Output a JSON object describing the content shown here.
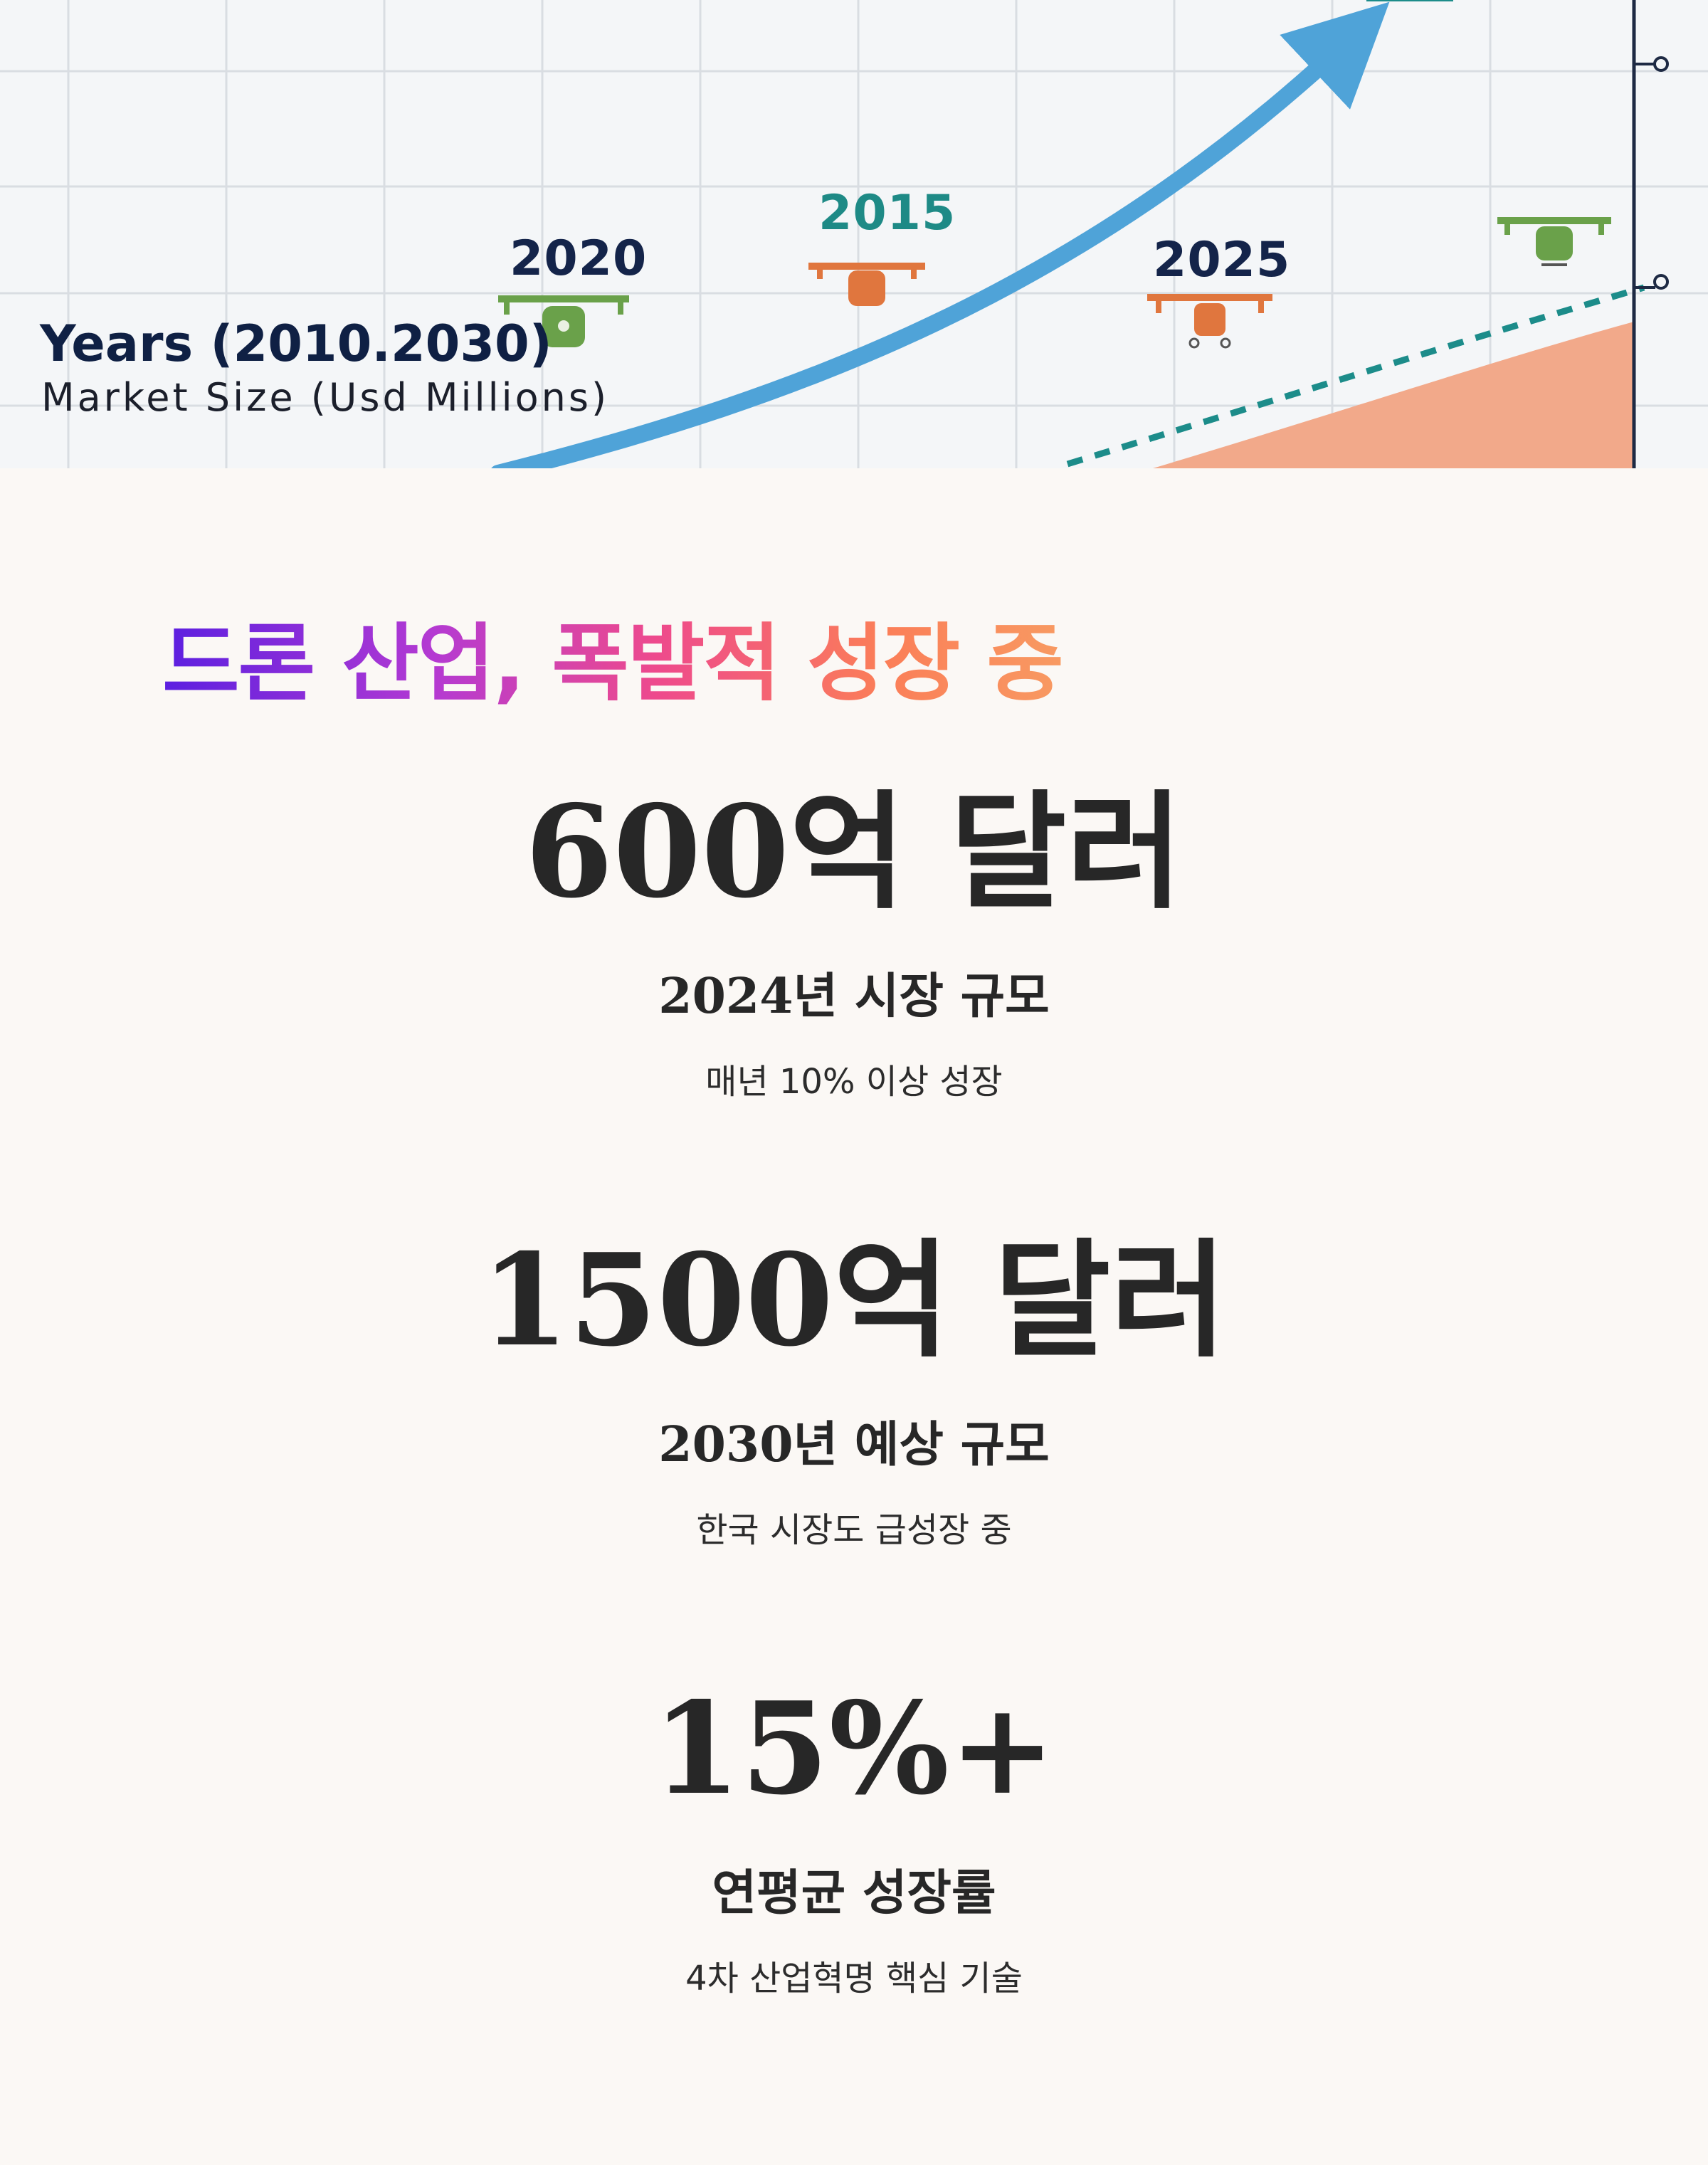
{
  "hero": {
    "year_labels": [
      "2020",
      "2015",
      "2025"
    ],
    "axis_years_label": "Years (2010.2030)",
    "axis_market_label": "Market Size (Usd Millions)",
    "colors": {
      "grid": "#d9dde2",
      "arrow": "#4fa3d8",
      "dashed_line": "#1c8c8a",
      "area": "#f2a98a",
      "year_dark": "#14244a",
      "year_teal": "#1e8a86",
      "drone_green": "#6aa14a",
      "drone_orange": "#e0763e",
      "axis_line": "#1e2a44"
    }
  },
  "headline": "드론 산업, 폭발적 성장 중",
  "stats": [
    {
      "value": "600억 달러",
      "title": "2024년 시장 규모",
      "sub": "매년 10% 이상 성장"
    },
    {
      "value": "1500억 달러",
      "title": "2030년 예상 규모",
      "sub": "한국 시장도 급성장 중"
    },
    {
      "value": "15%+",
      "title": "연평균 성장률",
      "sub": "4차 산업혁명 핵심 기술"
    }
  ]
}
